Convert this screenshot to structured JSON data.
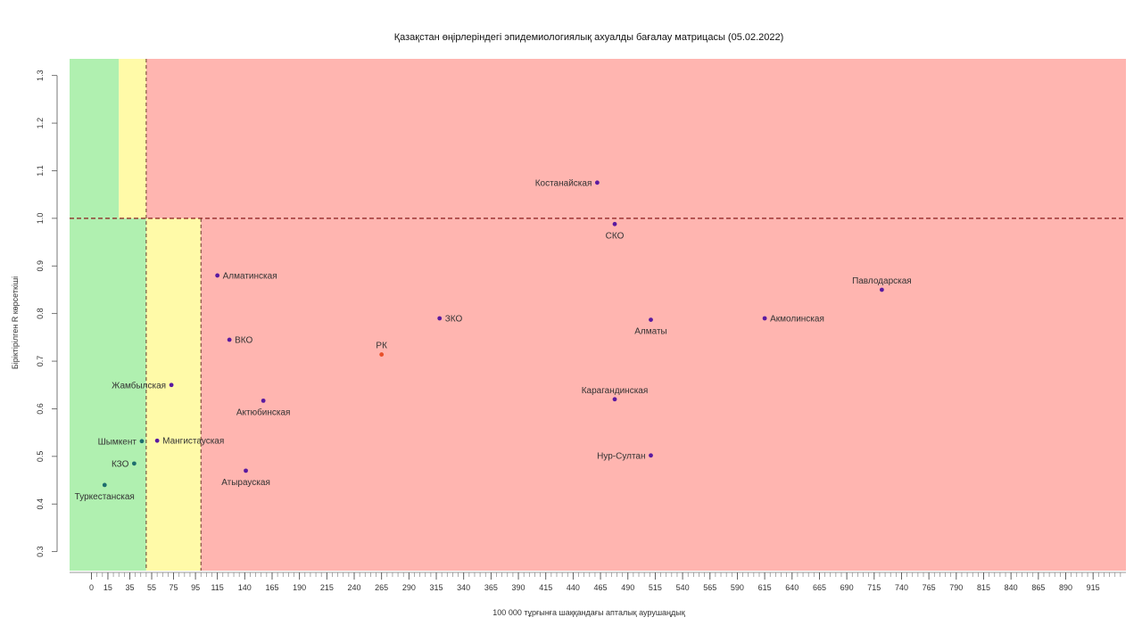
{
  "chart_data": {
    "type": "scatter",
    "title": "Қазақстан өңірлеріндегі эпидемиологиялық ахуалды бағалау матрицасы (05.02.2022)",
    "xlabel": "100 000 тұрғынға шаққандағы апталық аурушаңдық",
    "ylabel": "Біріктірілген R көрсеткіші",
    "xlim": [
      -20,
      945
    ],
    "ylim": [
      0.26,
      1.335
    ],
    "xticks": [
      0,
      15,
      35,
      55,
      75,
      95,
      115,
      140,
      165,
      190,
      215,
      240,
      265,
      290,
      315,
      340,
      365,
      390,
      415,
      440,
      465,
      490,
      515,
      540,
      565,
      590,
      615,
      640,
      665,
      690,
      715,
      740,
      765,
      790,
      815,
      840,
      865,
      890,
      915
    ],
    "yticks": [
      0.3,
      0.4,
      0.5,
      0.6,
      0.7,
      0.8,
      0.9,
      1.0,
      1.1,
      1.2,
      1.3
    ],
    "ytick_labels": [
      "0.3",
      "0.4",
      "0.5",
      "0.6",
      "0.7",
      "0.8",
      "0.9",
      "1.0",
      "1.1",
      "1.2",
      "1.3"
    ],
    "reference_line_y": 1.0,
    "zone_boundaries_x": [
      25,
      50,
      100
    ],
    "zone_colors": {
      "green": "#b0f0b0",
      "yellow": "#fffaa8",
      "red": "#ffb5b0"
    },
    "point_colors": {
      "default": "#5a1aa0",
      "green_zone": "#1e6e6e",
      "country": "#e8502a"
    },
    "points": [
      {
        "label": "Костанайская",
        "x": 462,
        "y": 1.075,
        "label_pos": "left",
        "color": "default"
      },
      {
        "label": "СКО",
        "x": 478,
        "y": 0.988,
        "label_pos": "below",
        "color": "default"
      },
      {
        "label": "Павлодарская",
        "x": 722,
        "y": 0.85,
        "label_pos": "above",
        "color": "default"
      },
      {
        "label": "Алматинская",
        "x": 115,
        "y": 0.88,
        "label_pos": "right",
        "color": "default"
      },
      {
        "label": "ЗКО",
        "x": 318,
        "y": 0.79,
        "label_pos": "right",
        "color": "default"
      },
      {
        "label": "Алматы",
        "x": 511,
        "y": 0.787,
        "label_pos": "below",
        "color": "default"
      },
      {
        "label": "Акмолинская",
        "x": 615,
        "y": 0.79,
        "label_pos": "right",
        "color": "default"
      },
      {
        "label": "ВКО",
        "x": 126,
        "y": 0.745,
        "label_pos": "right",
        "color": "default"
      },
      {
        "label": "РК",
        "x": 265,
        "y": 0.714,
        "label_pos": "above",
        "color": "country"
      },
      {
        "label": "Жамбылская",
        "x": 73,
        "y": 0.65,
        "label_pos": "left",
        "color": "default"
      },
      {
        "label": "Актюбинская",
        "x": 157,
        "y": 0.617,
        "label_pos": "below",
        "color": "default"
      },
      {
        "label": "Карагандинская",
        "x": 478,
        "y": 0.62,
        "label_pos": "above",
        "color": "default"
      },
      {
        "label": "Шымкент",
        "x": 46,
        "y": 0.532,
        "label_pos": "left",
        "color": "green_zone"
      },
      {
        "label": "Мангистауская",
        "x": 60,
        "y": 0.533,
        "label_pos": "right",
        "color": "default"
      },
      {
        "label": "Нур-Султан",
        "x": 511,
        "y": 0.502,
        "label_pos": "left",
        "color": "default"
      },
      {
        "label": "КЗО",
        "x": 39,
        "y": 0.485,
        "label_pos": "left",
        "color": "green_zone"
      },
      {
        "label": "Атырауская",
        "x": 141,
        "y": 0.47,
        "label_pos": "below",
        "color": "default"
      },
      {
        "label": "Туркестанская",
        "x": 12,
        "y": 0.44,
        "label_pos": "below",
        "color": "green_zone"
      }
    ]
  }
}
